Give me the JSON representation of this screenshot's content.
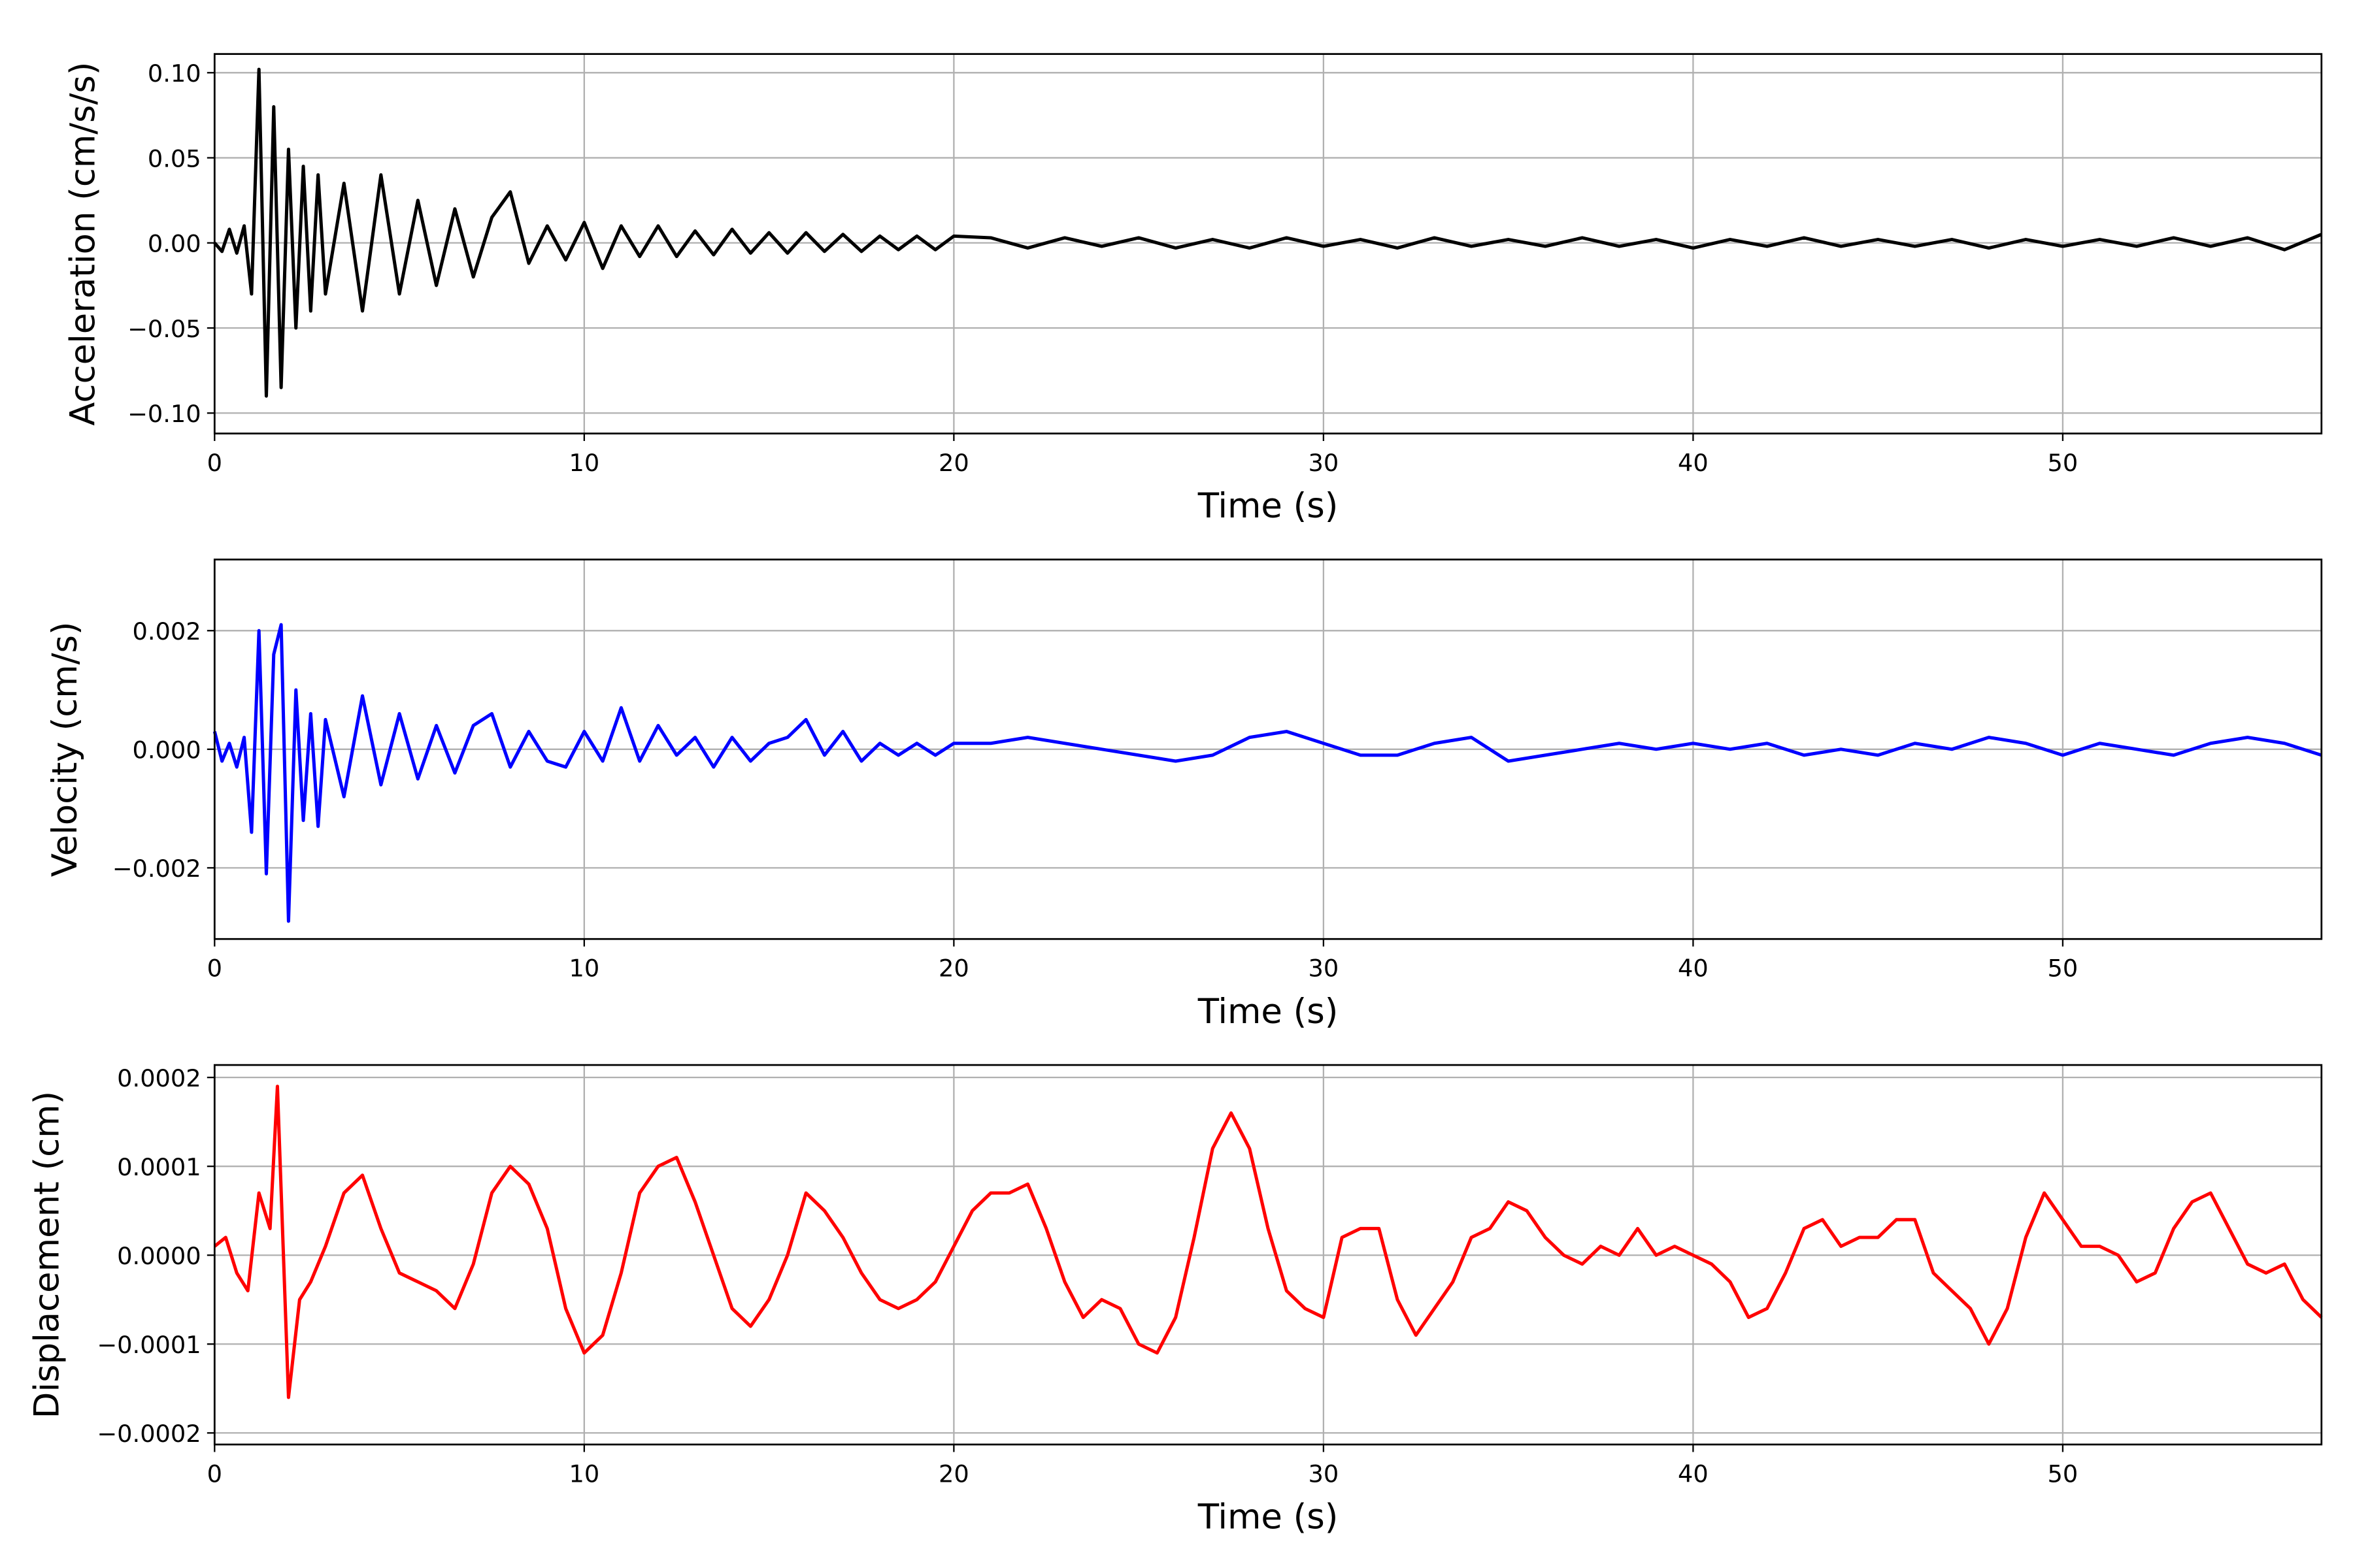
{
  "chart_data": [
    {
      "type": "line",
      "ylabel": "Acceleration (cm/s/s)",
      "xlabel": "Time (s)",
      "color": "#000000",
      "grid": true,
      "xlim": [
        0,
        57
      ],
      "xticks": [
        0,
        10,
        20,
        30,
        40,
        50
      ],
      "ylim": [
        -0.112,
        0.111
      ],
      "yticks": [
        {
          "value": -0.1,
          "label": "−0.10"
        },
        {
          "value": -0.05,
          "label": "−0.05"
        },
        {
          "value": 0,
          "label": "0.00"
        },
        {
          "value": 0.05,
          "label": "0.05"
        },
        {
          "value": 0.1,
          "label": "0.10"
        }
      ],
      "x": [
        0,
        0.2,
        0.4,
        0.6,
        0.8,
        1.0,
        1.2,
        1.4,
        1.6,
        1.8,
        2.0,
        2.2,
        2.4,
        2.6,
        2.8,
        3.0,
        3.5,
        4,
        4.5,
        5,
        5.5,
        6,
        6.5,
        7,
        7.5,
        8,
        8.5,
        9,
        9.5,
        10,
        10.5,
        11,
        11.5,
        12,
        12.5,
        13,
        13.5,
        14,
        14.5,
        15,
        15.5,
        16,
        16.5,
        17,
        17.5,
        18,
        18.5,
        19,
        19.5,
        20,
        21,
        22,
        23,
        24,
        25,
        26,
        27,
        28,
        29,
        30,
        31,
        32,
        33,
        34,
        35,
        36,
        37,
        38,
        39,
        40,
        41,
        42,
        43,
        44,
        45,
        46,
        47,
        48,
        49,
        50,
        51,
        52,
        53,
        54,
        55,
        56,
        57
      ],
      "values": [
        0.0,
        -0.005,
        0.008,
        -0.006,
        0.01,
        -0.03,
        0.102,
        -0.09,
        0.08,
        -0.085,
        0.055,
        -0.05,
        0.045,
        -0.04,
        0.04,
        -0.03,
        0.035,
        -0.04,
        0.04,
        -0.03,
        0.025,
        -0.025,
        0.02,
        -0.02,
        0.015,
        0.03,
        -0.012,
        0.01,
        -0.01,
        0.012,
        -0.015,
        0.01,
        -0.008,
        0.01,
        -0.008,
        0.007,
        -0.007,
        0.008,
        -0.006,
        0.006,
        -0.006,
        0.006,
        -0.005,
        0.005,
        -0.005,
        0.004,
        -0.004,
        0.004,
        -0.004,
        0.004,
        0.003,
        -0.003,
        0.003,
        -0.002,
        0.003,
        -0.003,
        0.002,
        -0.003,
        0.003,
        -0.002,
        0.002,
        -0.003,
        0.003,
        -0.002,
        0.002,
        -0.002,
        0.003,
        -0.002,
        0.002,
        -0.003,
        0.002,
        -0.002,
        0.003,
        -0.002,
        0.002,
        -0.002,
        0.002,
        -0.003,
        0.002,
        -0.002,
        0.002,
        -0.002,
        0.003,
        -0.002,
        0.003,
        -0.004,
        0.005
      ]
    },
    {
      "type": "line",
      "ylabel": "Velocity (cm/s)",
      "xlabel": "Time (s)",
      "color": "#0000ff",
      "grid": true,
      "xlim": [
        0,
        57
      ],
      "xticks": [
        0,
        10,
        20,
        30,
        40,
        50
      ],
      "ylim": [
        -0.0032,
        0.0032
      ],
      "yticks": [
        {
          "value": -0.002,
          "label": "−0.002"
        },
        {
          "value": 0,
          "label": "0.000"
        },
        0.002
      ],
      "x": [
        0,
        0.2,
        0.4,
        0.6,
        0.8,
        1.0,
        1.2,
        1.4,
        1.6,
        1.8,
        2.0,
        2.2,
        2.4,
        2.6,
        2.8,
        3.0,
        3.5,
        4,
        4.5,
        5,
        5.5,
        6,
        6.5,
        7,
        7.5,
        8,
        8.5,
        9,
        9.5,
        10,
        10.5,
        11,
        11.5,
        12,
        12.5,
        13,
        13.5,
        14,
        14.5,
        15,
        15.5,
        16,
        16.5,
        17,
        17.5,
        18,
        18.5,
        19,
        19.5,
        20,
        21,
        22,
        23,
        24,
        25,
        26,
        27,
        28,
        29,
        30,
        31,
        32,
        33,
        34,
        35,
        36,
        37,
        38,
        39,
        40,
        41,
        42,
        43,
        44,
        45,
        46,
        47,
        48,
        49,
        50,
        51,
        52,
        53,
        54,
        55,
        56,
        57
      ],
      "values": [
        0.0003,
        -0.0002,
        0.0001,
        -0.0003,
        0.0002,
        -0.0014,
        0.002,
        -0.0021,
        0.0016,
        0.0021,
        -0.0029,
        0.001,
        -0.0012,
        0.0006,
        -0.0013,
        0.0005,
        -0.0008,
        0.0009,
        -0.0006,
        0.0006,
        -0.0005,
        0.0004,
        -0.0004,
        0.0004,
        0.0006,
        -0.0003,
        0.0003,
        -0.0002,
        -0.0003,
        0.0003,
        -0.0002,
        0.0007,
        -0.0002,
        0.0004,
        -0.0001,
        0.0002,
        -0.0003,
        0.0002,
        -0.0002,
        0.0001,
        0.0002,
        0.0005,
        -0.0001,
        0.0003,
        -0.0002,
        0.0001,
        -0.0001,
        0.0001,
        -0.0001,
        0.0001,
        0.0001,
        0.0002,
        0.0001,
        0.0,
        -0.0001,
        -0.0002,
        -0.0001,
        0.0002,
        0.0003,
        0.0001,
        -0.0001,
        -0.0001,
        0.0001,
        0.0002,
        -0.0002,
        -0.0001,
        0.0,
        0.0001,
        0.0,
        0.0001,
        0.0,
        0.0001,
        -0.0001,
        0.0,
        -0.0001,
        0.0001,
        0.0,
        0.0002,
        0.0001,
        -0.0001,
        0.0001,
        0.0,
        -0.0001,
        0.0001,
        0.0002,
        0.0001,
        -0.0001
      ]
    },
    {
      "type": "line",
      "ylabel": "Displacement (cm)",
      "xlabel": "Time (s)",
      "color": "#ff0000",
      "grid": true,
      "xlim": [
        0,
        57
      ],
      "xticks": [
        0,
        10,
        20,
        30,
        40,
        50
      ],
      "ylim": [
        -0.000213,
        0.000214
      ],
      "yticks": [
        {
          "value": -0.0002,
          "label": "−0.0002"
        },
        {
          "value": -0.0001,
          "label": "−0.0001"
        },
        {
          "value": 0,
          "label": "0.0000"
        },
        0.0001,
        0.0002
      ],
      "x": [
        0,
        0.3,
        0.6,
        0.9,
        1.2,
        1.5,
        1.7,
        2.0,
        2.3,
        2.6,
        3.0,
        3.5,
        4.0,
        4.5,
        5.0,
        5.5,
        6.0,
        6.5,
        7.0,
        7.5,
        8.0,
        8.5,
        9.0,
        9.5,
        10.0,
        10.5,
        11.0,
        11.5,
        12.0,
        12.5,
        13.0,
        13.5,
        14.0,
        14.5,
        15.0,
        15.5,
        16.0,
        16.5,
        17.0,
        17.5,
        18.0,
        18.5,
        19.0,
        19.5,
        20.0,
        20.5,
        21.0,
        21.5,
        22.0,
        22.5,
        23.0,
        23.5,
        24.0,
        24.5,
        25.0,
        25.5,
        26.0,
        26.5,
        27.0,
        27.5,
        28.0,
        28.5,
        29.0,
        29.5,
        30.0,
        30.5,
        31.0,
        31.5,
        32.0,
        32.5,
        33.0,
        33.5,
        34.0,
        34.5,
        35.0,
        35.5,
        36.0,
        36.5,
        37.0,
        37.5,
        38.0,
        38.5,
        39.0,
        39.5,
        40.0,
        40.5,
        41.0,
        41.5,
        42.0,
        42.5,
        43.0,
        43.5,
        44.0,
        44.5,
        45.0,
        45.5,
        46.0,
        46.5,
        47.0,
        47.5,
        48.0,
        48.5,
        49.0,
        49.5,
        50.0,
        50.5,
        51.0,
        51.5,
        52.0,
        52.5,
        53.0,
        53.5,
        54.0,
        54.5,
        55.0,
        55.5,
        56.0,
        56.5,
        57.0
      ],
      "values": [
        1e-05,
        2e-05,
        -2e-05,
        -4e-05,
        7e-05,
        3e-05,
        0.00019,
        -0.00016,
        -5e-05,
        -3e-05,
        1e-05,
        7e-05,
        9e-05,
        3e-05,
        -2e-05,
        -3e-05,
        -4e-05,
        -6e-05,
        -1e-05,
        7e-05,
        0.0001,
        8e-05,
        3e-05,
        -6e-05,
        -0.00011,
        -9e-05,
        -2e-05,
        7e-05,
        0.0001,
        0.00011,
        6e-05,
        0.0,
        -6e-05,
        -8e-05,
        -5e-05,
        0.0,
        7e-05,
        5e-05,
        2e-05,
        -2e-05,
        -5e-05,
        -6e-05,
        -5e-05,
        -3e-05,
        1e-05,
        5e-05,
        7e-05,
        7e-05,
        8e-05,
        3e-05,
        -3e-05,
        -7e-05,
        -5e-05,
        -6e-05,
        -0.0001,
        -0.00011,
        -7e-05,
        2e-05,
        0.00012,
        0.00016,
        0.00012,
        3e-05,
        -4e-05,
        -6e-05,
        -7e-05,
        2e-05,
        3e-05,
        3e-05,
        -5e-05,
        -9e-05,
        -6e-05,
        -3e-05,
        2e-05,
        3e-05,
        6e-05,
        5e-05,
        2e-05,
        0.0,
        -1e-05,
        1e-05,
        0.0,
        3e-05,
        0.0,
        1e-05,
        0.0,
        -1e-05,
        -3e-05,
        -7e-05,
        -6e-05,
        -2e-05,
        3e-05,
        4e-05,
        1e-05,
        2e-05,
        2e-05,
        4e-05,
        4e-05,
        -2e-05,
        -4e-05,
        -6e-05,
        -0.0001,
        -6e-05,
        2e-05,
        7e-05,
        4e-05,
        1e-05,
        1e-05,
        0.0,
        -3e-05,
        -2e-05,
        3e-05,
        6e-05,
        7e-05,
        3e-05,
        -1e-05,
        -2e-05,
        -1e-05,
        -5e-05,
        -7e-05
      ]
    }
  ]
}
